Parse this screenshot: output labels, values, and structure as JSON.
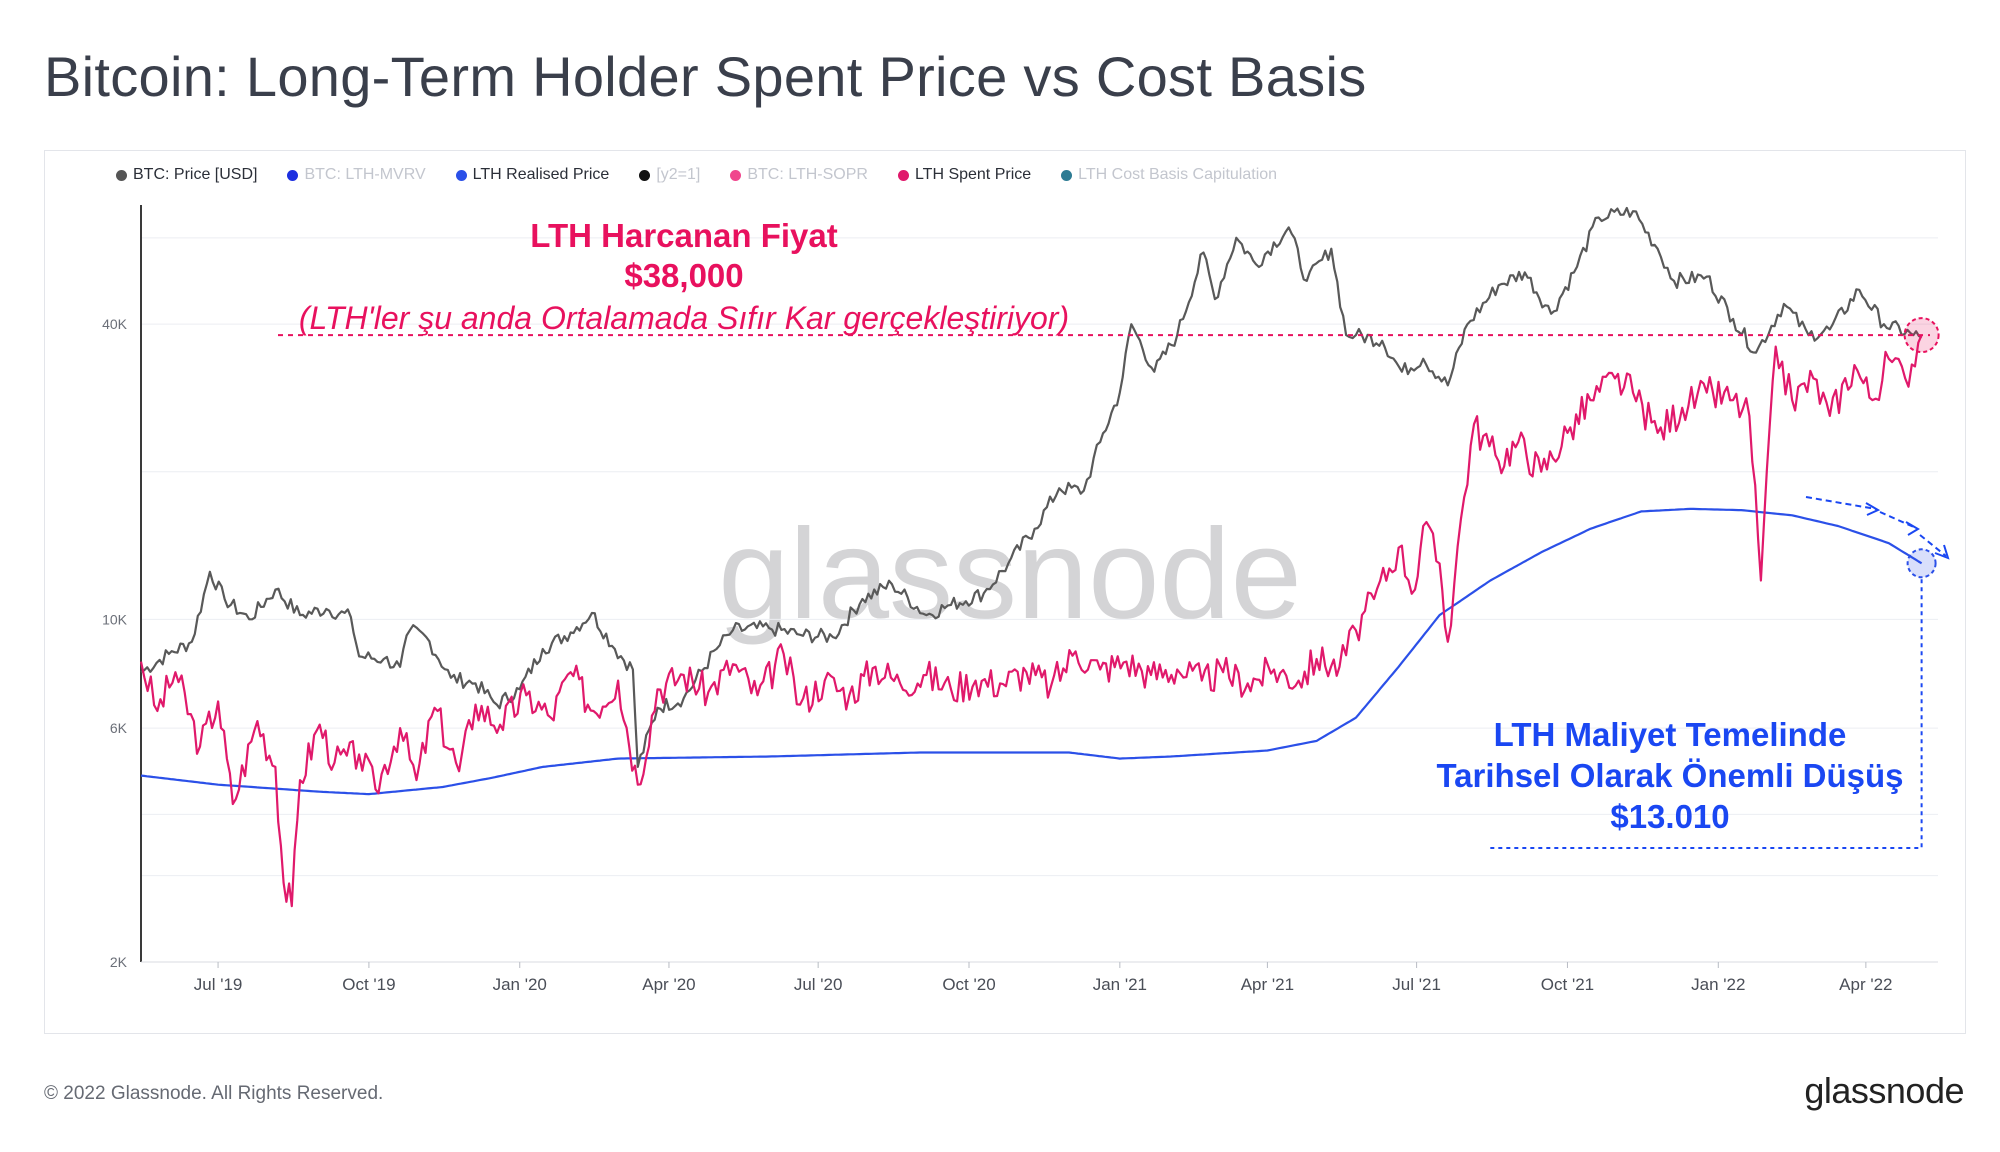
{
  "title": "Bitcoin: Long-Term Holder Spent Price vs Cost Basis",
  "footer": {
    "copyright": "© 2022 Glassnode. All Rights Reserved.",
    "brand": "glassnode"
  },
  "watermark": "glassnode",
  "legend": [
    {
      "label": "BTC: Price [USD]",
      "color": "#555555",
      "active": true
    },
    {
      "label": "BTC: LTH-MVRV",
      "color": "#1c2fe0",
      "active": false
    },
    {
      "label": "LTH Realised Price",
      "color": "#2b50e8",
      "active": true
    },
    {
      "label": "[y2=1]",
      "color": "#111111",
      "active": false
    },
    {
      "label": "BTC: LTH-SOPR",
      "color": "#f0468d",
      "active": false
    },
    {
      "label": "LTH Spent Price",
      "color": "#e0196b",
      "active": true
    },
    {
      "label": "LTH Cost Basis Capitulation",
      "color": "#2d7b93",
      "active": false
    }
  ],
  "annotations": {
    "spent": {
      "line1": "LTH Harcanan Fiyat",
      "line2": "$38,000",
      "line3": "(LTH'ler şu anda Ortalamada Sıfır Kar gerçekleştiriyor)"
    },
    "cost": {
      "line1": "LTH Maliyet Temelinde",
      "line2": "Tarihsel Olarak Önemli Düşüş",
      "line3": "$13.010"
    }
  },
  "chart_data": {
    "type": "line",
    "title": "Bitcoin: Long-Term Holder Spent Price vs Cost Basis",
    "y_scale": "log",
    "ylim": [
      2000,
      70000
    ],
    "y_ticks": [
      {
        "value": 2000,
        "label": "2K"
      },
      {
        "value": 6000,
        "label": "6K"
      },
      {
        "value": 10000,
        "label": "10K"
      },
      {
        "value": 40000,
        "label": "40K"
      }
    ],
    "xlim": [
      "2019-05-15",
      "2022-05-15"
    ],
    "x_ticks": [
      {
        "value": "2019-07-01",
        "label": "Jul '19"
      },
      {
        "value": "2019-10-01",
        "label": "Oct '19"
      },
      {
        "value": "2020-01-01",
        "label": "Jan '20"
      },
      {
        "value": "2020-04-01",
        "label": "Apr '20"
      },
      {
        "value": "2020-07-01",
        "label": "Jul '20"
      },
      {
        "value": "2020-10-01",
        "label": "Oct '20"
      },
      {
        "value": "2021-01-01",
        "label": "Jan '21"
      },
      {
        "value": "2021-04-01",
        "label": "Apr '21"
      },
      {
        "value": "2021-07-01",
        "label": "Jul '21"
      },
      {
        "value": "2021-10-01",
        "label": "Oct '21"
      },
      {
        "value": "2022-01-01",
        "label": "Jan '22"
      },
      {
        "value": "2022-04-01",
        "label": "Apr '22"
      }
    ],
    "reference_line": {
      "value": 38000,
      "color": "#e8115e"
    },
    "series": [
      {
        "name": "BTC: Price [USD]",
        "color": "#595959",
        "points": [
          [
            "2019-05-15",
            7800
          ],
          [
            "2019-06-01",
            8500
          ],
          [
            "2019-06-15",
            9000
          ],
          [
            "2019-06-26",
            12500
          ],
          [
            "2019-07-05",
            11000
          ],
          [
            "2019-07-20",
            10000
          ],
          [
            "2019-08-05",
            11500
          ],
          [
            "2019-08-20",
            10200
          ],
          [
            "2019-09-05",
            10500
          ],
          [
            "2019-09-20",
            10100
          ],
          [
            "2019-09-25",
            8400
          ],
          [
            "2019-10-10",
            8300
          ],
          [
            "2019-10-20",
            8000
          ],
          [
            "2019-10-26",
            9500
          ],
          [
            "2019-11-05",
            9200
          ],
          [
            "2019-11-20",
            7600
          ],
          [
            "2019-12-05",
            7400
          ],
          [
            "2019-12-18",
            6700
          ],
          [
            "2020-01-01",
            7200
          ],
          [
            "2020-01-15",
            8700
          ],
          [
            "2020-02-01",
            9400
          ],
          [
            "2020-02-14",
            10300
          ],
          [
            "2020-02-28",
            8700
          ],
          [
            "2020-03-10",
            7900
          ],
          [
            "2020-03-13",
            5000
          ],
          [
            "2020-03-25",
            6600
          ],
          [
            "2020-04-10",
            6900
          ],
          [
            "2020-04-30",
            8700
          ],
          [
            "2020-05-10",
            9500
          ],
          [
            "2020-06-01",
            9600
          ],
          [
            "2020-06-20",
            9300
          ],
          [
            "2020-07-10",
            9200
          ],
          [
            "2020-07-28",
            11000
          ],
          [
            "2020-08-15",
            11800
          ],
          [
            "2020-09-05",
            10200
          ],
          [
            "2020-09-20",
            10700
          ],
          [
            "2020-10-10",
            11300
          ],
          [
            "2020-10-25",
            13000
          ],
          [
            "2020-11-10",
            15300
          ],
          [
            "2020-11-25",
            18500
          ],
          [
            "2020-12-10",
            18300
          ],
          [
            "2020-12-20",
            23000
          ],
          [
            "2021-01-01",
            29000
          ],
          [
            "2021-01-08",
            40000
          ],
          [
            "2021-01-22",
            32000
          ],
          [
            "2021-02-05",
            38000
          ],
          [
            "2021-02-21",
            56000
          ],
          [
            "2021-02-28",
            45000
          ],
          [
            "2021-03-13",
            60000
          ],
          [
            "2021-03-25",
            53000
          ],
          [
            "2021-04-14",
            63000
          ],
          [
            "2021-04-25",
            49000
          ],
          [
            "2021-05-10",
            57000
          ],
          [
            "2021-05-19",
            38000
          ],
          [
            "2021-05-25",
            38000
          ],
          [
            "2021-06-10",
            37000
          ],
          [
            "2021-06-22",
            32000
          ],
          [
            "2021-07-05",
            34000
          ],
          [
            "2021-07-20",
            30000
          ],
          [
            "2021-08-01",
            40000
          ],
          [
            "2021-08-20",
            48000
          ],
          [
            "2021-09-05",
            51000
          ],
          [
            "2021-09-21",
            42000
          ],
          [
            "2021-10-05",
            51000
          ],
          [
            "2021-10-20",
            66000
          ],
          [
            "2021-11-10",
            68000
          ],
          [
            "2021-11-25",
            57000
          ],
          [
            "2021-12-05",
            49000
          ],
          [
            "2021-12-25",
            50000
          ],
          [
            "2022-01-10",
            41000
          ],
          [
            "2022-01-24",
            35000
          ],
          [
            "2022-02-10",
            44000
          ],
          [
            "2022-02-25",
            38000
          ],
          [
            "2022-03-10",
            39000
          ],
          [
            "2022-03-28",
            47000
          ],
          [
            "2022-04-12",
            40000
          ],
          [
            "2022-04-30",
            38000
          ],
          [
            "2022-05-05",
            37500
          ]
        ]
      },
      {
        "name": "LTH Spent Price",
        "color": "#e0196b",
        "points": [
          [
            "2019-05-15",
            8200
          ],
          [
            "2019-05-25",
            6500
          ],
          [
            "2019-06-05",
            7800
          ],
          [
            "2019-06-20",
            5500
          ],
          [
            "2019-07-01",
            6800
          ],
          [
            "2019-07-10",
            4200
          ],
          [
            "2019-07-25",
            6200
          ],
          [
            "2019-08-05",
            5000
          ],
          [
            "2019-08-10",
            2900
          ],
          [
            "2019-08-15",
            2600
          ],
          [
            "2019-08-20",
            4700
          ],
          [
            "2019-09-01",
            6100
          ],
          [
            "2019-09-10",
            5100
          ],
          [
            "2019-09-25",
            5300
          ],
          [
            "2019-10-05",
            4500
          ],
          [
            "2019-10-20",
            6000
          ],
          [
            "2019-10-30",
            4700
          ],
          [
            "2019-11-10",
            6600
          ],
          [
            "2019-11-25",
            4900
          ],
          [
            "2019-12-05",
            6700
          ],
          [
            "2019-12-20",
            6100
          ],
          [
            "2020-01-05",
            7000
          ],
          [
            "2020-01-20",
            6300
          ],
          [
            "2020-02-01",
            7800
          ],
          [
            "2020-02-15",
            6500
          ],
          [
            "2020-03-01",
            7500
          ],
          [
            "2020-03-13",
            4600
          ],
          [
            "2020-03-25",
            7200
          ],
          [
            "2020-04-10",
            7700
          ],
          [
            "2020-04-25",
            7100
          ],
          [
            "2020-05-10",
            8100
          ],
          [
            "2020-05-25",
            7000
          ],
          [
            "2020-06-10",
            8500
          ],
          [
            "2020-06-20",
            6700
          ],
          [
            "2020-07-05",
            7500
          ],
          [
            "2020-07-20",
            7000
          ],
          [
            "2020-08-05",
            8000
          ],
          [
            "2020-08-20",
            7400
          ],
          [
            "2020-09-05",
            7700
          ],
          [
            "2020-09-20",
            7200
          ],
          [
            "2020-10-05",
            7500
          ],
          [
            "2020-10-20",
            7400
          ],
          [
            "2020-11-05",
            7800
          ],
          [
            "2020-11-20",
            7300
          ],
          [
            "2020-12-05",
            8600
          ],
          [
            "2020-12-20",
            7900
          ],
          [
            "2021-01-05",
            8200
          ],
          [
            "2021-01-20",
            7700
          ],
          [
            "2021-02-05",
            7900
          ],
          [
            "2021-02-20",
            7500
          ],
          [
            "2021-03-05",
            7800
          ],
          [
            "2021-03-20",
            7400
          ],
          [
            "2021-04-05",
            7900
          ],
          [
            "2021-04-20",
            7500
          ],
          [
            "2021-05-01",
            8300
          ],
          [
            "2021-05-15",
            8000
          ],
          [
            "2021-05-25",
            9500
          ],
          [
            "2021-06-05",
            11000
          ],
          [
            "2021-06-20",
            14000
          ],
          [
            "2021-06-30",
            11500
          ],
          [
            "2021-07-05",
            15500
          ],
          [
            "2021-07-15",
            13000
          ],
          [
            "2021-07-20",
            9000
          ],
          [
            "2021-07-28",
            16000
          ],
          [
            "2021-08-05",
            25000
          ],
          [
            "2021-08-20",
            21000
          ],
          [
            "2021-09-01",
            23000
          ],
          [
            "2021-09-15",
            20000
          ],
          [
            "2021-10-01",
            24000
          ],
          [
            "2021-10-15",
            28000
          ],
          [
            "2021-10-30",
            31000
          ],
          [
            "2021-11-10",
            29000
          ],
          [
            "2021-11-25",
            24000
          ],
          [
            "2021-12-10",
            27000
          ],
          [
            "2021-12-25",
            29000
          ],
          [
            "2022-01-10",
            28000
          ],
          [
            "2022-01-20",
            26000
          ],
          [
            "2022-01-27",
            12000
          ],
          [
            "2022-02-05",
            36000
          ],
          [
            "2022-02-15",
            28000
          ],
          [
            "2022-02-28",
            31000
          ],
          [
            "2022-03-10",
            26000
          ],
          [
            "2022-03-25",
            33000
          ],
          [
            "2022-04-05",
            28000
          ],
          [
            "2022-04-15",
            34000
          ],
          [
            "2022-04-25",
            31000
          ],
          [
            "2022-05-05",
            38000
          ]
        ]
      },
      {
        "name": "LTH Realised Price",
        "color": "#2b50e8",
        "points": [
          [
            "2019-05-15",
            4800
          ],
          [
            "2019-07-01",
            4600
          ],
          [
            "2019-09-01",
            4450
          ],
          [
            "2019-10-01",
            4400
          ],
          [
            "2019-11-15",
            4550
          ],
          [
            "2019-12-15",
            4750
          ],
          [
            "2020-01-15",
            5000
          ],
          [
            "2020-03-01",
            5200
          ],
          [
            "2020-06-01",
            5250
          ],
          [
            "2020-09-01",
            5350
          ],
          [
            "2020-12-01",
            5350
          ],
          [
            "2021-01-01",
            5200
          ],
          [
            "2021-02-01",
            5250
          ],
          [
            "2021-04-01",
            5400
          ],
          [
            "2021-05-01",
            5650
          ],
          [
            "2021-05-25",
            6300
          ],
          [
            "2021-06-20",
            8000
          ],
          [
            "2021-07-15",
            10200
          ],
          [
            "2021-08-15",
            12000
          ],
          [
            "2021-09-15",
            13700
          ],
          [
            "2021-10-15",
            15300
          ],
          [
            "2021-11-15",
            16600
          ],
          [
            "2021-12-15",
            16800
          ],
          [
            "2022-01-15",
            16700
          ],
          [
            "2022-02-15",
            16300
          ],
          [
            "2022-03-15",
            15500
          ],
          [
            "2022-04-15",
            14300
          ],
          [
            "2022-05-05",
            13010
          ]
        ]
      }
    ]
  }
}
